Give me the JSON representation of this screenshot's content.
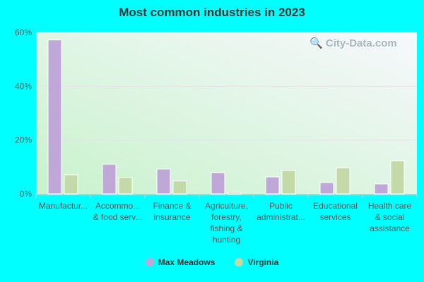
{
  "chart_data": {
    "type": "bar",
    "title": "Most common industries in 2023",
    "categories": [
      [
        "Manufactur..."
      ],
      [
        "Accommo...",
        "& food serv..."
      ],
      [
        "Finance &",
        "insurance"
      ],
      [
        "Agriculture,",
        "forestry,",
        "fishing &",
        "hunting"
      ],
      [
        "Public",
        "administrat..."
      ],
      [
        "Educational",
        "services"
      ],
      [
        "Health care",
        "& social",
        "assistance"
      ]
    ],
    "series": [
      {
        "name": "Max Meadows",
        "color": "#bfa8d8",
        "values": [
          57.2,
          11.0,
          9.2,
          7.9,
          6.3,
          4.2,
          3.7
        ]
      },
      {
        "name": "Virginia",
        "color": "#c4d9a8",
        "values": [
          7.1,
          6.1,
          4.8,
          0.6,
          8.7,
          9.7,
          12.3
        ]
      }
    ],
    "ylim": [
      0,
      60
    ],
    "yticks": [
      "0%",
      "20%",
      "40%",
      "60%"
    ],
    "grid": true,
    "legend": "bottom"
  },
  "watermark": "City-Data.com"
}
